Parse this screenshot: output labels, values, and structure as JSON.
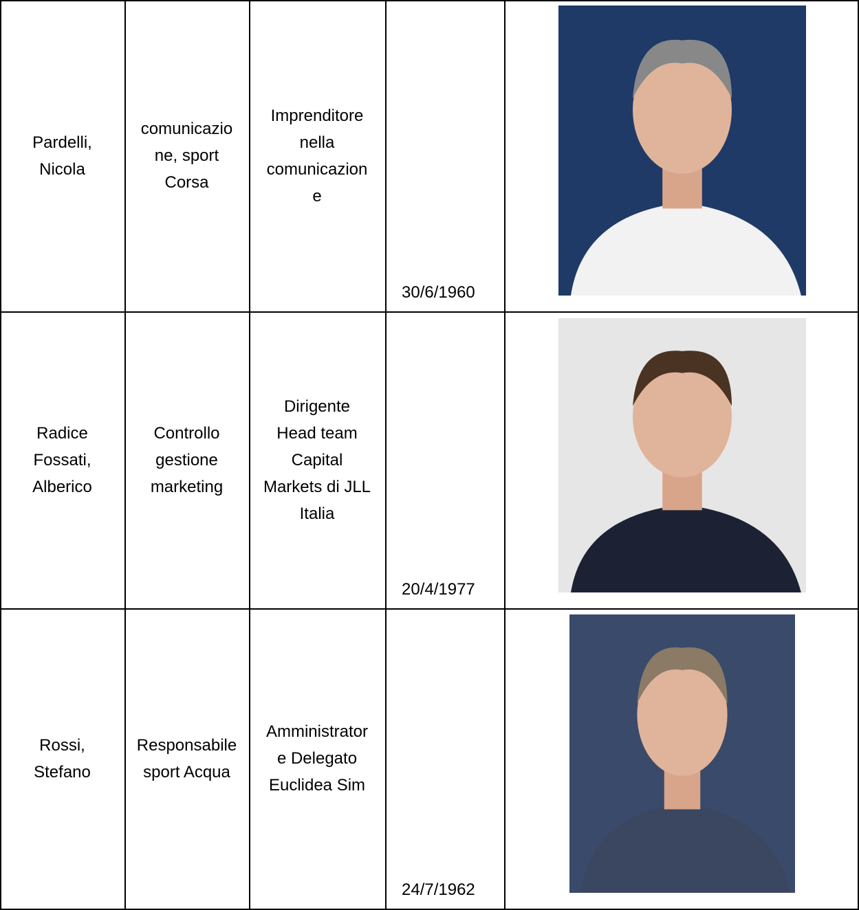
{
  "table": {
    "rows": [
      [
        [
          "Pardelli,",
          "Nicola"
        ],
        [
          "comunicazio",
          "ne, sport",
          "Corsa"
        ],
        [
          "Imprenditore",
          "nella",
          "comunicazion",
          "e"
        ],
        [
          "30/6/1960"
        ]
      ],
      [
        [
          "Radice",
          "Fossati,",
          "Alberico"
        ],
        [
          "Controllo",
          "gestione",
          "marketing"
        ],
        [
          "Dirigente",
          "Head team",
          "Capital",
          "Markets di JLL",
          "Italia"
        ],
        [
          "20/4/1977"
        ]
      ],
      [
        [
          "Rossi,",
          "Stefano"
        ],
        [
          "Responsabile",
          "sport Acqua"
        ],
        [
          "Amministrator",
          "e Delegato",
          "Euclidea Sim"
        ],
        [
          "24/7/1962"
        ]
      ]
    ]
  }
}
